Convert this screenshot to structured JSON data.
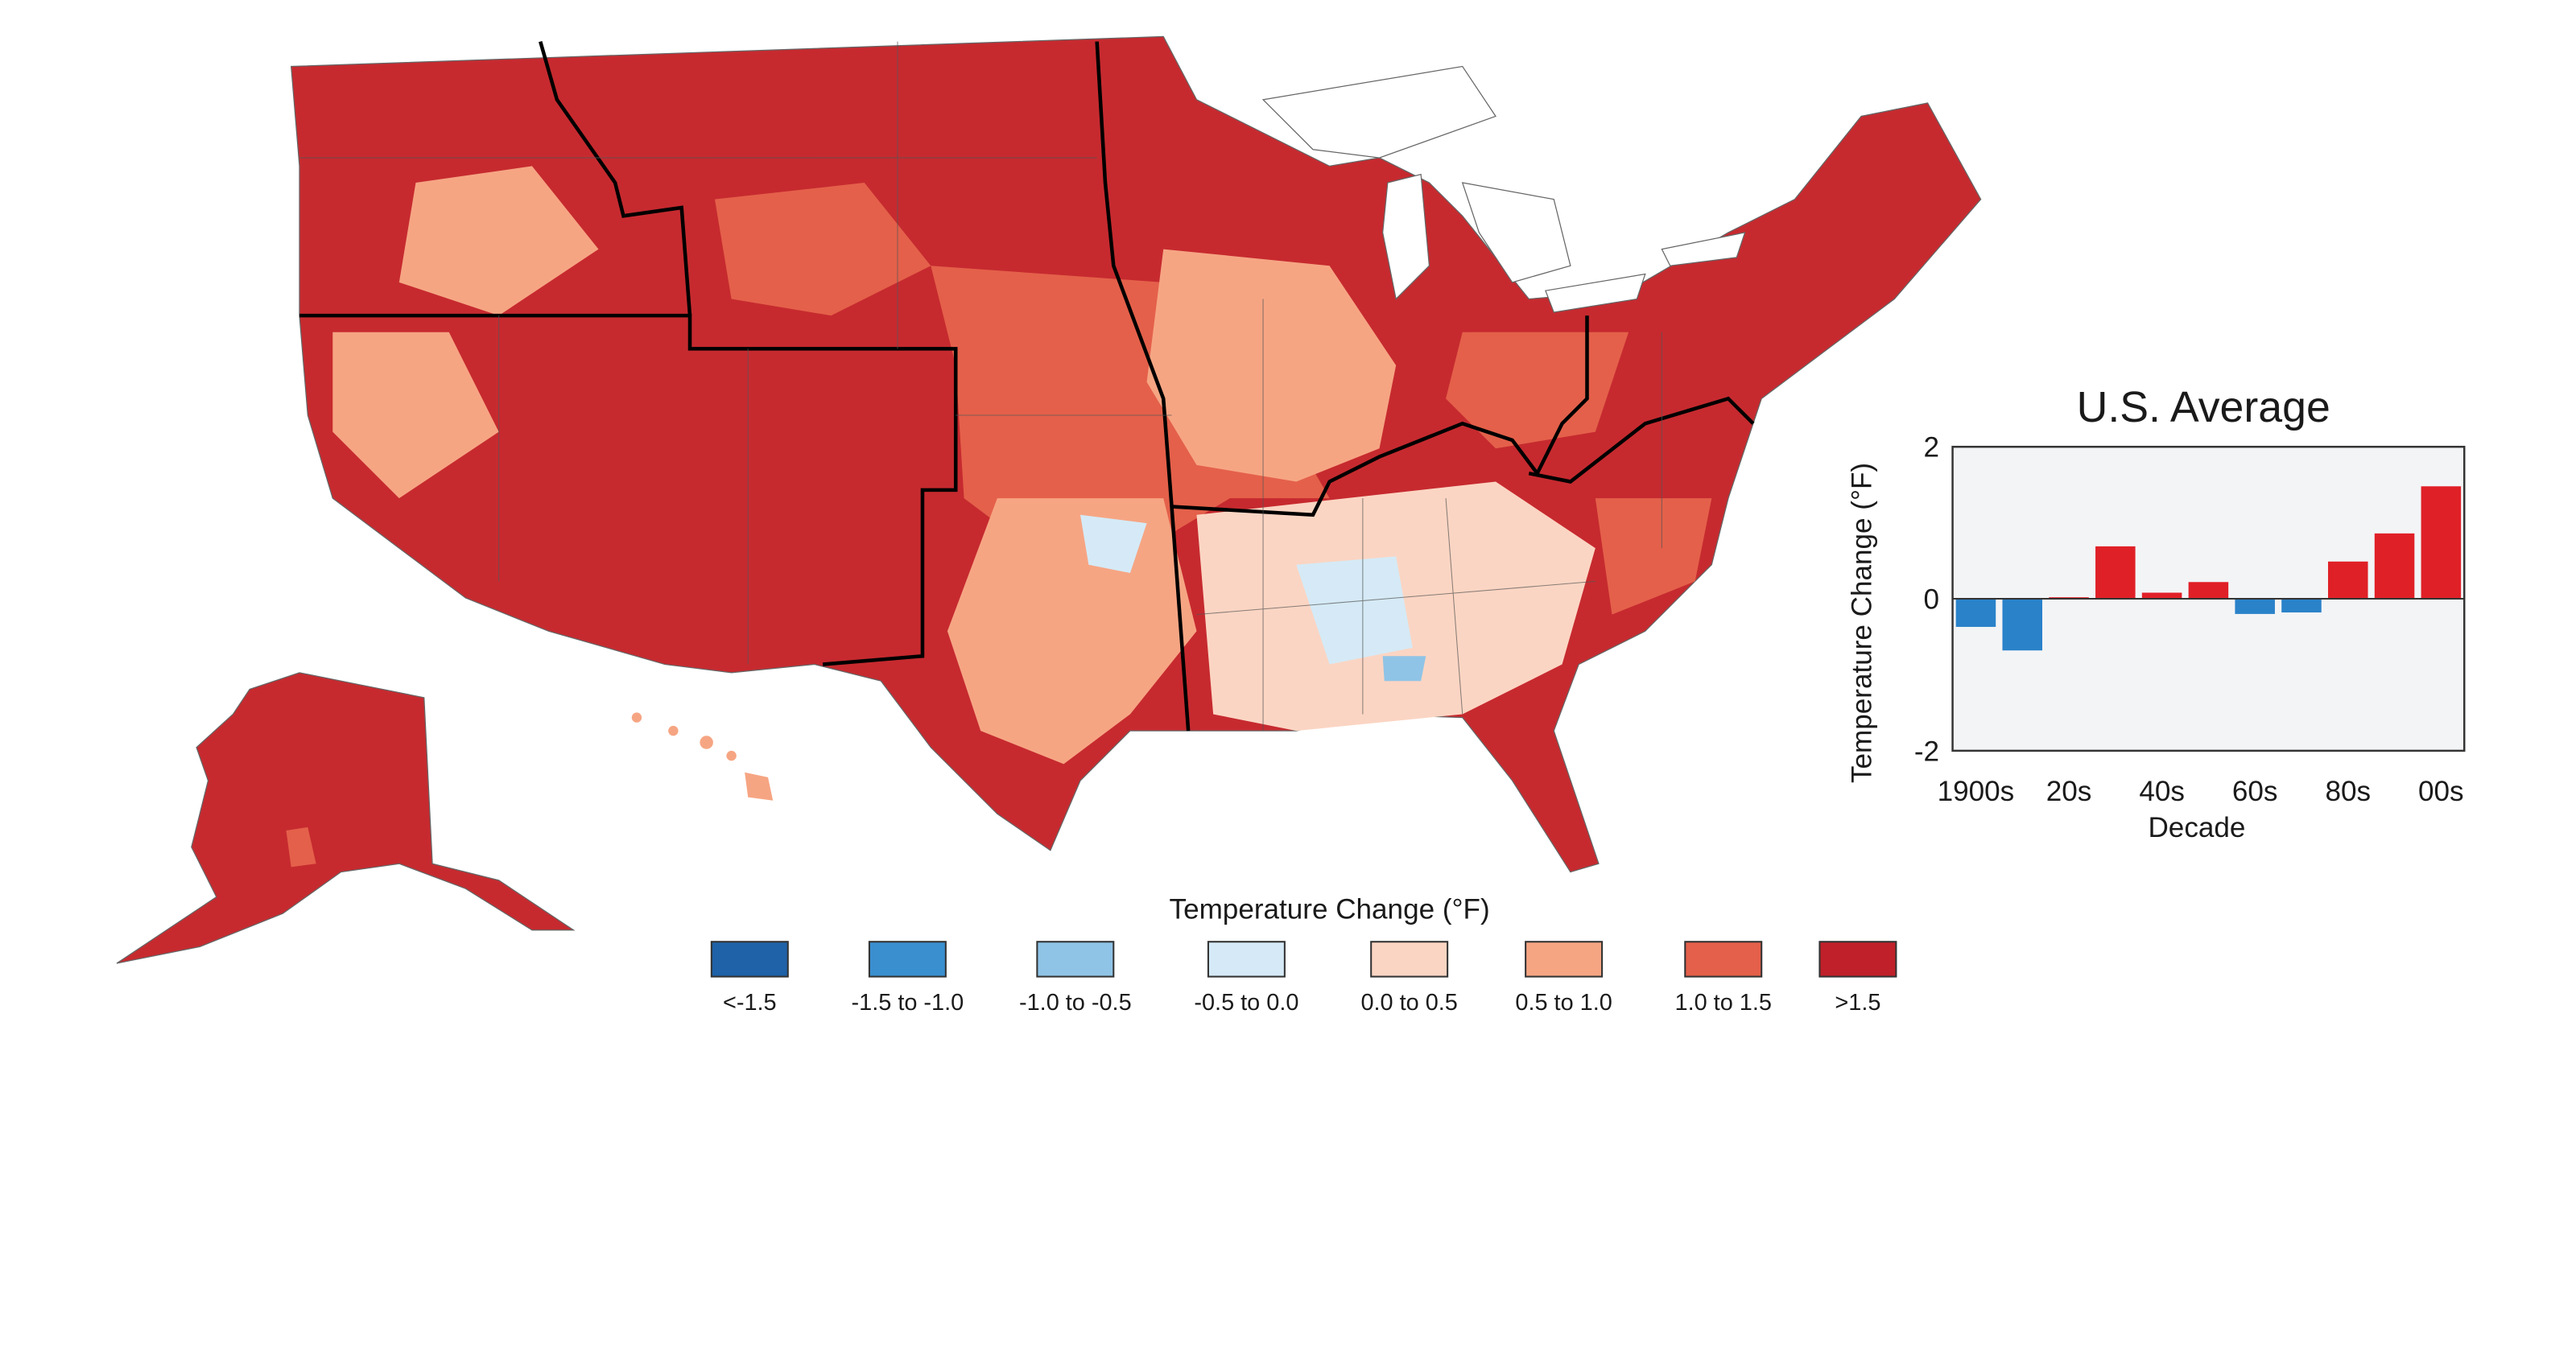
{
  "map": {
    "legend_title": "Temperature Change (°F)",
    "legend": [
      {
        "label": "<-1.5",
        "color": "#1f62a8"
      },
      {
        "label": "-1.5 to -1.0",
        "color": "#3a8fcf"
      },
      {
        "label": "-1.0 to -0.5",
        "color": "#8fc4e6"
      },
      {
        "label": "-0.5 to 0.0",
        "color": "#d5eaf6"
      },
      {
        "label": "0.0 to 0.5",
        "color": "#fbd5c3"
      },
      {
        "label": "0.5 to 1.0",
        "color": "#f6a583"
      },
      {
        "label": "1.0 to 1.5",
        "color": "#e4604a"
      },
      {
        "label": ">1.5",
        "color": "#c0202a"
      }
    ]
  },
  "chart_data": {
    "type": "bar",
    "title": "U.S. Average",
    "xlabel": "Decade",
    "ylabel": "Temperature Change (°F)",
    "ylim": [
      -2,
      2
    ],
    "yticks": [
      "2",
      "0",
      "-2"
    ],
    "xtick_labels": [
      "1900s",
      "20s",
      "40s",
      "60s",
      "80s",
      "00s"
    ],
    "categories": [
      "1900s",
      "1910s",
      "1920s",
      "1930s",
      "1940s",
      "1950s",
      "1960s",
      "1970s",
      "1980s",
      "1990s",
      "2000s"
    ],
    "values": [
      -0.37,
      -0.68,
      0.02,
      0.69,
      0.08,
      0.22,
      -0.2,
      -0.18,
      0.49,
      0.86,
      1.48
    ],
    "colors": {
      "positive": "#e02027",
      "negative": "#2a82c9"
    },
    "plot_background": "#f3f4f6",
    "grid": false
  }
}
